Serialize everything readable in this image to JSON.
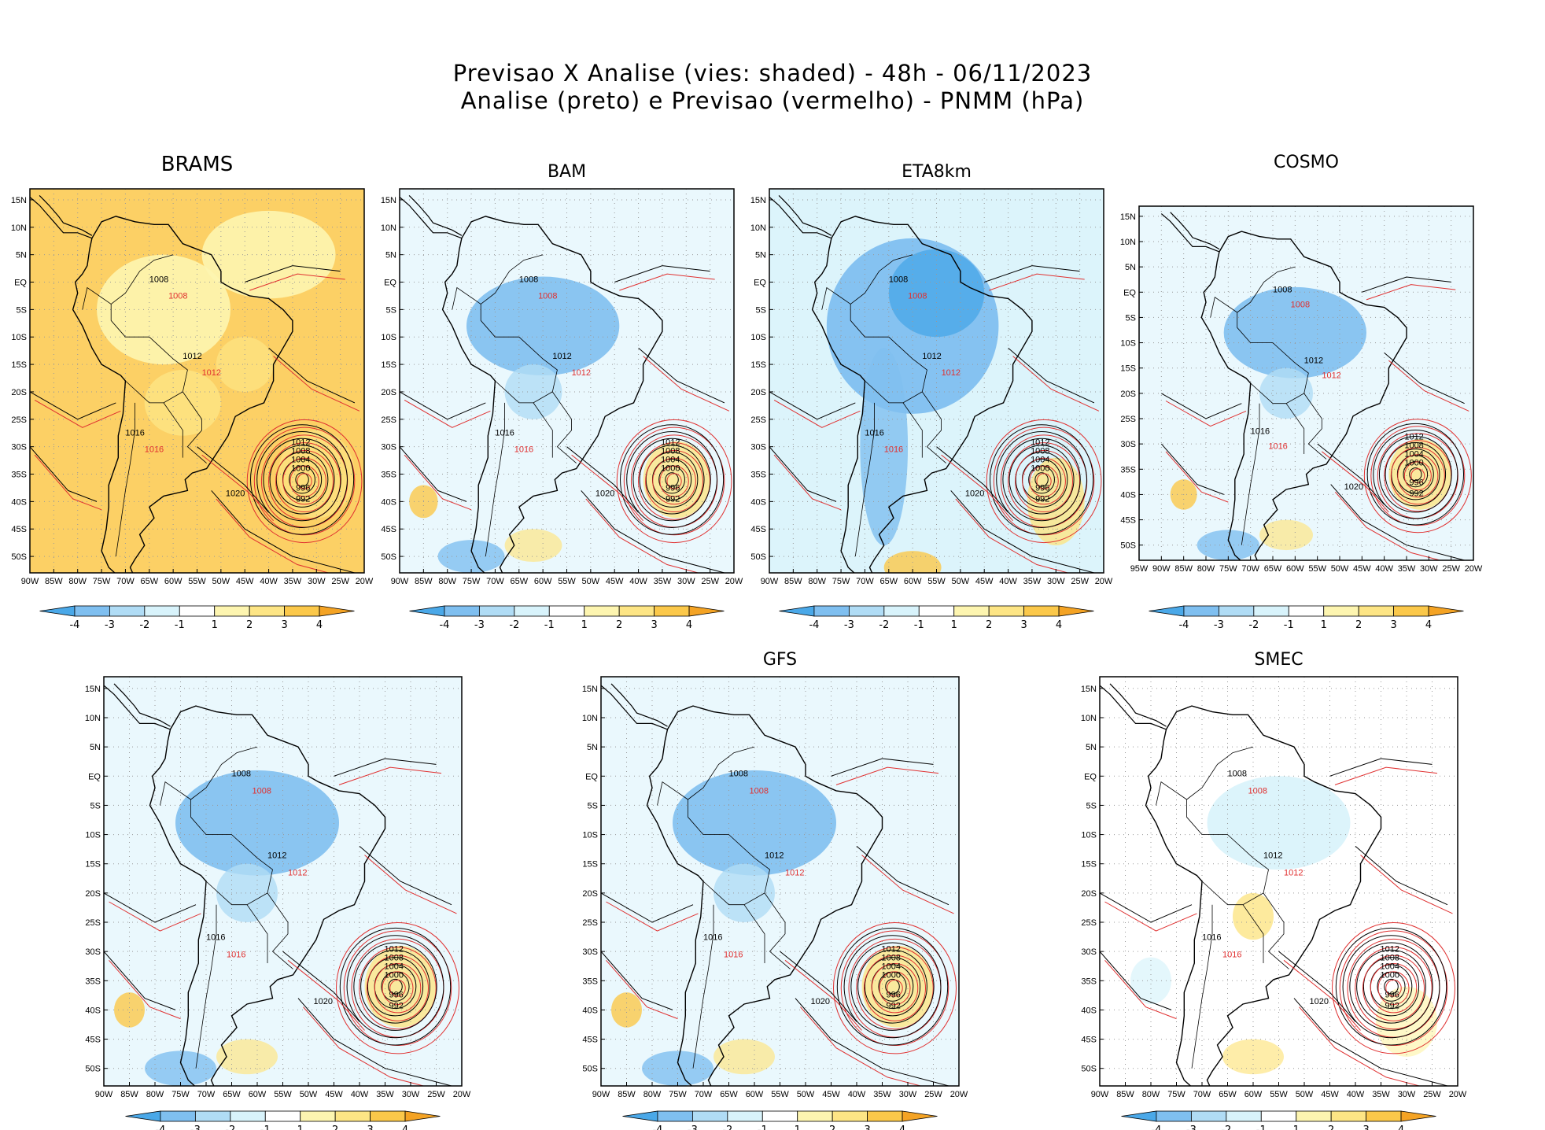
{
  "figure": {
    "title_line1": "Previsao X Analise (vies: shaded) - 48h - 06/11/2023",
    "title_line2": "Analise (preto) e Previsao (vermelho) - PNMM (hPa)"
  },
  "panels": [
    {
      "name": "BRAMS",
      "bias_style": "warm"
    },
    {
      "name": "BAM",
      "bias_style": "mixed"
    },
    {
      "name": "ETA8km",
      "bias_style": "cold"
    },
    {
      "name": "COSMO",
      "bias_style": "mixed"
    },
    {
      "name": "",
      "bias_style": "mixed"
    },
    {
      "name": "GFS",
      "bias_style": "mixed"
    },
    {
      "name": "SMEC",
      "bias_style": "light"
    }
  ],
  "axes": {
    "lon_labels_default": [
      "90W",
      "85W",
      "80W",
      "75W",
      "70W",
      "65W",
      "60W",
      "55W",
      "50W",
      "45W",
      "40W",
      "35W",
      "30W",
      "25W",
      "20W"
    ],
    "lon_labels_cosmo": [
      "95W",
      "90W",
      "85W",
      "80W",
      "75W",
      "70W",
      "65W",
      "60W",
      "55W",
      "50W",
      "45W",
      "40W",
      "35W",
      "30W",
      "25W",
      "20W"
    ],
    "lat_labels": [
      "15N",
      "10N",
      "5N",
      "EQ",
      "5S",
      "10S",
      "15S",
      "20S",
      "25S",
      "30S",
      "35S",
      "40S",
      "45S",
      "50S"
    ]
  },
  "colorbar": {
    "labels": [
      "-4",
      "-3",
      "-2",
      "-1",
      "1",
      "2",
      "3",
      "4"
    ],
    "colors": [
      "#4aa8e8",
      "#7fbff0",
      "#b0dcf5",
      "#d8f3fb",
      "#ffffff",
      "#fdf5b0",
      "#fde585",
      "#fbc84a",
      "#f4a324"
    ]
  },
  "isobar_labels": {
    "cyclone_center": [
      "1012",
      "1008",
      "1004",
      "1000",
      "996",
      "992"
    ],
    "high": "1020",
    "continent": [
      "1008",
      "1012",
      "1016"
    ]
  },
  "colors": {
    "analysis_contour": "#000000",
    "forecast_contour": "#e03030",
    "grid": "#999999"
  }
}
